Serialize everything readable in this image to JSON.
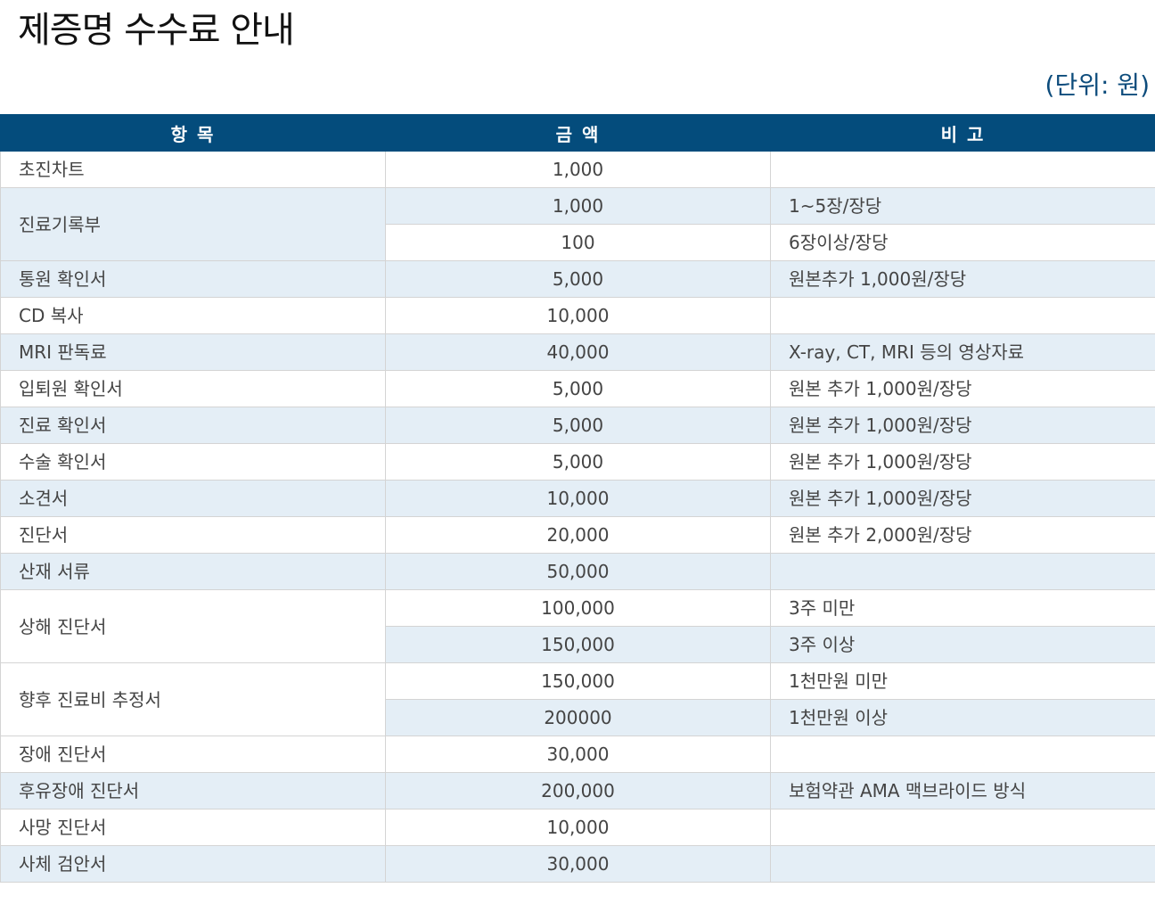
{
  "title": "제증명 수수료 안내",
  "unit": "(단위: 원)",
  "colors": {
    "header_bg": "#044c7c",
    "shade_row": "#e4eef6",
    "unit_text": "#0d4c7c"
  },
  "table": {
    "headers": [
      "항 목",
      "금 액",
      "비 고"
    ],
    "groups": [
      {
        "item": "초진차트",
        "rows": [
          {
            "amount": "1,000",
            "note": ""
          }
        ]
      },
      {
        "item": "진료기록부",
        "rows": [
          {
            "amount": "1,000",
            "note": "1~5장/장당"
          },
          {
            "amount": "100",
            "note": "6장이상/장당"
          }
        ]
      },
      {
        "item": "통원 확인서",
        "rows": [
          {
            "amount": "5,000",
            "note": "원본추가 1,000원/장당"
          }
        ]
      },
      {
        "item": "CD 복사",
        "rows": [
          {
            "amount": "10,000",
            "note": ""
          }
        ]
      },
      {
        "item": "MRI 판독료",
        "rows": [
          {
            "amount": "40,000",
            "note": "X-ray, CT, MRI 등의 영상자료"
          }
        ]
      },
      {
        "item": "입퇴원 확인서",
        "rows": [
          {
            "amount": "5,000",
            "note": "원본 추가 1,000원/장당"
          }
        ]
      },
      {
        "item": "진료 확인서",
        "rows": [
          {
            "amount": "5,000",
            "note": "원본 추가 1,000원/장당"
          }
        ]
      },
      {
        "item": "수술 확인서",
        "rows": [
          {
            "amount": "5,000",
            "note": "원본 추가 1,000원/장당"
          }
        ]
      },
      {
        "item": "소견서",
        "rows": [
          {
            "amount": "10,000",
            "note": "원본 추가 1,000원/장당"
          }
        ]
      },
      {
        "item": "진단서",
        "rows": [
          {
            "amount": "20,000",
            "note": "원본 추가 2,000원/장당"
          }
        ]
      },
      {
        "item": "산재 서류",
        "rows": [
          {
            "amount": "50,000",
            "note": ""
          }
        ]
      },
      {
        "item": "상해 진단서",
        "rows": [
          {
            "amount": "100,000",
            "note": "3주 미만"
          },
          {
            "amount": "150,000",
            "note": "3주 이상"
          }
        ]
      },
      {
        "item": "향후 진료비 추정서",
        "rows": [
          {
            "amount": "150,000",
            "note": "1천만원 미만"
          },
          {
            "amount": "200000",
            "note": "1천만원 이상"
          }
        ]
      },
      {
        "item": "장애 진단서",
        "rows": [
          {
            "amount": "30,000",
            "note": ""
          }
        ]
      },
      {
        "item": "후유장애 진단서",
        "rows": [
          {
            "amount": "200,000",
            "note": "보험약관 AMA 맥브라이드 방식"
          }
        ]
      },
      {
        "item": "사망 진단서",
        "rows": [
          {
            "amount": "10,000",
            "note": ""
          }
        ]
      },
      {
        "item": "사체 검안서",
        "rows": [
          {
            "amount": "30,000",
            "note": ""
          }
        ]
      }
    ]
  }
}
